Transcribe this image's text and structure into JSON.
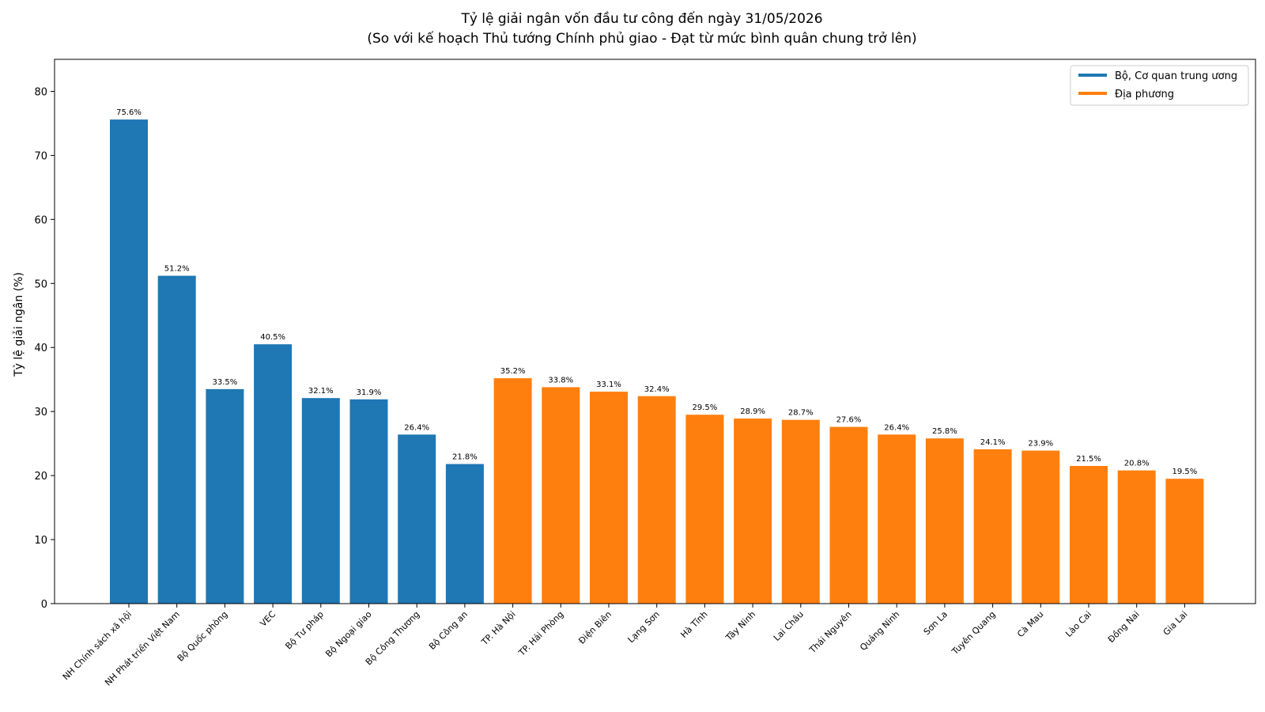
{
  "chart_data": {
    "type": "bar",
    "title": "Tỷ lệ giải ngân vốn đầu tư công đến ngày 31/05/2026",
    "subtitle": "(So với kế hoạch Thủ tướng Chính phủ giao - Đạt từ mức bình quân chung trở lên)",
    "xlabel": "",
    "ylabel": "Tỷ lệ giải ngân (%)",
    "ylim": [
      0,
      85
    ],
    "yticks": [
      "0",
      "10",
      "20",
      "30",
      "40",
      "50",
      "60",
      "70",
      "80"
    ],
    "grid": false,
    "legend_position": "top-right",
    "value_suffix": "%",
    "series": [
      {
        "name": "Bộ, Cơ quan trung ương",
        "color": "#1f77b4"
      },
      {
        "name": "Địa phương",
        "color": "#ff7f0e"
      }
    ],
    "categories": [
      "NH Chính sách xã hội",
      "NH Phát triển Việt Nam",
      "Bộ Quốc phòng",
      "VEC",
      "Bộ Tư pháp",
      "Bộ Ngoại giao",
      "Bộ Công Thương",
      "Bộ Công an",
      "TP. Hà Nội",
      "TP. Hải Phòng",
      "Điện Biên",
      "Lạng Sơn",
      "Hà Tĩnh",
      "Tây Ninh",
      "Lai Châu",
      "Thái Nguyên",
      "Quảng Ninh",
      "Sơn La",
      "Tuyên Quang",
      "Cà Mau",
      "Lào Cai",
      "Đồng Nai",
      "Gia Lai"
    ],
    "values": [
      75.6,
      51.2,
      33.5,
      40.5,
      32.1,
      31.9,
      26.4,
      21.8,
      35.2,
      33.8,
      33.1,
      32.4,
      29.5,
      28.9,
      28.7,
      27.6,
      26.4,
      25.8,
      24.1,
      23.9,
      21.5,
      20.8,
      19.5
    ],
    "series_index": [
      0,
      0,
      0,
      0,
      0,
      0,
      0,
      0,
      1,
      1,
      1,
      1,
      1,
      1,
      1,
      1,
      1,
      1,
      1,
      1,
      1,
      1,
      1
    ]
  }
}
